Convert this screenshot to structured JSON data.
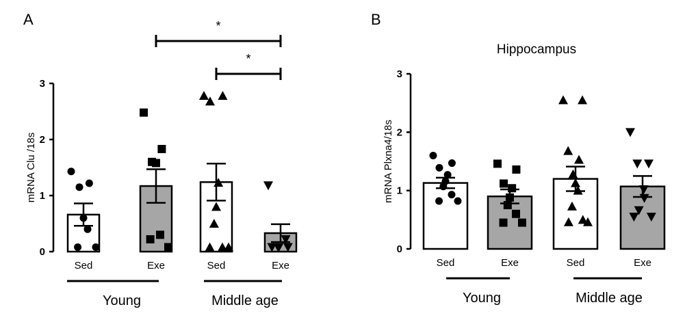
{
  "chart_data": [
    {
      "type": "bar",
      "panel": "A",
      "title": "",
      "ylabel": "mRNA Clu /18s",
      "ylim": [
        0,
        3
      ],
      "yticks": [
        0,
        1,
        2,
        3
      ],
      "categories": [
        "Sed",
        "Exe",
        "Sed",
        "Exe"
      ],
      "groups": [
        "Young",
        "Middle age"
      ],
      "bar_fill": [
        "#ffffff",
        "#a6a6a6",
        "#ffffff",
        "#a6a6a6"
      ],
      "values": [
        0.66,
        1.17,
        1.24,
        0.33
      ],
      "sem": [
        0.2,
        0.3,
        0.33,
        0.16
      ],
      "markers": [
        "circle",
        "square",
        "triangle-up",
        "triangle-down"
      ],
      "points": [
        [
          1.43,
          1.22,
          1.15,
          0.6,
          0.4,
          0.08,
          0.08
        ],
        [
          2.48,
          1.83,
          1.6,
          1.58,
          0.3,
          0.22,
          0.08
        ],
        [
          2.78,
          2.78,
          2.68,
          1.23,
          0.8,
          0.5,
          0.08,
          0.08,
          0.08
        ],
        [
          1.18,
          0.22,
          0.08,
          0.08,
          0.08,
          0.08
        ]
      ],
      "significance": [
        {
          "from": 1,
          "to": 3,
          "label": "*"
        },
        {
          "from": 2,
          "to": 3,
          "label": "*"
        }
      ]
    },
    {
      "type": "bar",
      "panel": "B",
      "title": "Hippocampus",
      "ylabel": "mRNA Plxna4/18s",
      "ylim": [
        0,
        3
      ],
      "yticks": [
        0,
        1,
        2,
        3
      ],
      "categories": [
        "Sed",
        "Exe",
        "Sed",
        "Exe"
      ],
      "groups": [
        "Young",
        "Middle age"
      ],
      "bar_fill": [
        "#ffffff",
        "#a6a6a6",
        "#ffffff",
        "#a6a6a6"
      ],
      "values": [
        1.13,
        0.9,
        1.2,
        1.07
      ],
      "sem": [
        0.09,
        0.12,
        0.21,
        0.18
      ],
      "markers": [
        "circle",
        "square",
        "triangle-up",
        "triangle-down"
      ],
      "points": [
        [
          1.6,
          1.47,
          1.39,
          1.27,
          1.16,
          1.07,
          0.93,
          0.82,
          0.82
        ],
        [
          1.46,
          1.36,
          1.12,
          1.04,
          0.88,
          0.75,
          0.6,
          0.45,
          0.45
        ],
        [
          2.55,
          2.55,
          1.68,
          1.53,
          1.28,
          1.13,
          1.0,
          0.73,
          0.5,
          0.46,
          0.46
        ],
        [
          2.0,
          1.46,
          1.46,
          1.02,
          0.87,
          0.66,
          0.55,
          0.55
        ]
      ],
      "significance": []
    }
  ]
}
